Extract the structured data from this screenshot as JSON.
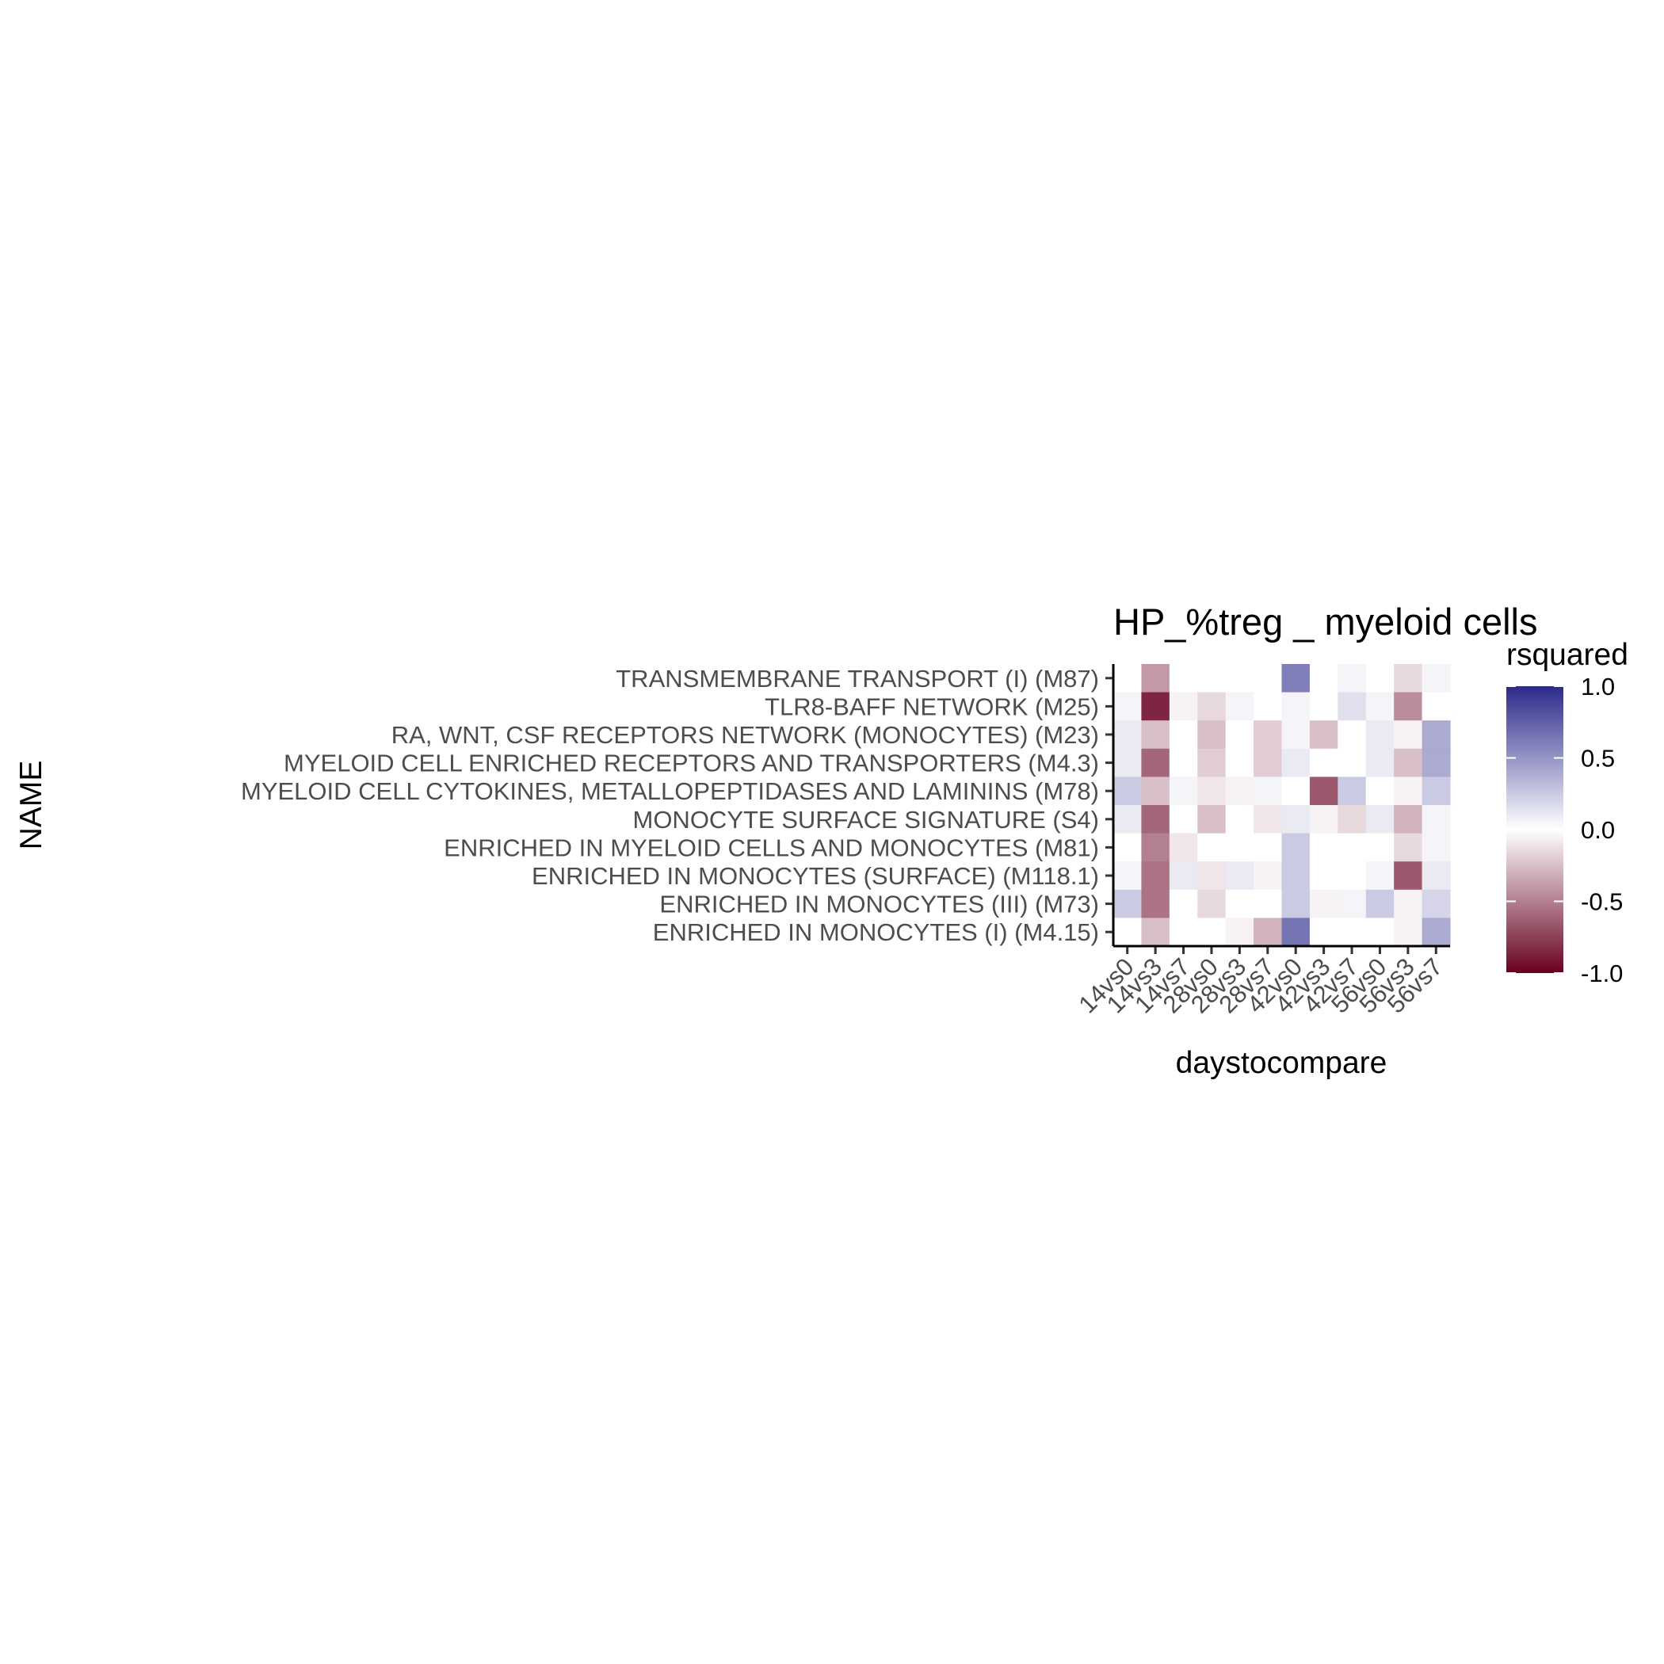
{
  "chart_data": {
    "type": "heatmap",
    "title": "HP_%treg _ myeloid cells",
    "xlabel": "daystocompare",
    "ylabel": "NAME",
    "x_categories": [
      "14vs0",
      "14vs3",
      "14vs7",
      "28vs0",
      "28vs3",
      "28vs7",
      "42vs0",
      "42vs3",
      "42vs7",
      "56vs0",
      "56vs3",
      "56vs7"
    ],
    "y_categories": [
      "TRANSMEMBRANE TRANSPORT (I) (M87)",
      "TLR8-BAFF NETWORK (M25)",
      "RA, WNT, CSF RECEPTORS NETWORK (MONOCYTES) (M23)",
      "MYELOID CELL ENRICHED RECEPTORS AND TRANSPORTERS (M4.3)",
      "MYELOID CELL CYTOKINES, METALLOPEPTIDASES AND LAMININS (M78)",
      "MONOCYTE SURFACE SIGNATURE (S4)",
      "ENRICHED IN MYELOID CELLS AND MONOCYTES (M81)",
      "ENRICHED IN MONOCYTES (SURFACE) (M118.1)",
      "ENRICHED IN MONOCYTES (III) (M73)",
      "ENRICHED IN MONOCYTES (I) (M4.15)"
    ],
    "values": [
      [
        0.0,
        -0.4,
        0.0,
        0.0,
        0.0,
        0.0,
        0.6,
        0.0,
        0.05,
        0.0,
        -0.15,
        0.05
      ],
      [
        0.05,
        -0.85,
        -0.05,
        -0.15,
        0.05,
        0.0,
        0.05,
        0.0,
        0.15,
        0.05,
        -0.45,
        0.0
      ],
      [
        0.1,
        -0.25,
        0.0,
        -0.25,
        0.0,
        -0.2,
        0.05,
        -0.25,
        0.0,
        0.1,
        -0.05,
        0.4
      ],
      [
        0.1,
        -0.6,
        0.0,
        -0.2,
        0.0,
        -0.2,
        0.1,
        0.0,
        0.0,
        0.1,
        -0.25,
        0.4
      ],
      [
        0.25,
        -0.25,
        0.05,
        -0.1,
        -0.05,
        0.05,
        0.0,
        -0.65,
        0.25,
        0.0,
        -0.05,
        0.25
      ],
      [
        0.1,
        -0.6,
        0.0,
        -0.25,
        0.0,
        -0.1,
        0.1,
        -0.05,
        -0.15,
        0.1,
        -0.3,
        0.05
      ],
      [
        0.0,
        -0.5,
        -0.1,
        0.0,
        0.0,
        0.0,
        0.25,
        0.0,
        0.0,
        0.0,
        -0.15,
        0.05
      ],
      [
        0.05,
        -0.55,
        0.1,
        -0.1,
        0.1,
        -0.05,
        0.25,
        0.0,
        0.0,
        0.05,
        -0.65,
        0.1
      ],
      [
        0.25,
        -0.55,
        0.0,
        -0.15,
        0.0,
        0.0,
        0.25,
        -0.05,
        0.05,
        0.25,
        -0.05,
        0.2
      ],
      [
        0.0,
        -0.25,
        0.0,
        0.0,
        -0.05,
        -0.3,
        0.65,
        0.0,
        0.0,
        0.0,
        -0.05,
        0.4
      ]
    ],
    "legend": {
      "title": "rsquared",
      "range": [
        -1.0,
        1.0
      ],
      "ticks": [
        "1.0",
        "0.5",
        "0.0",
        "-0.5",
        "-1.0"
      ],
      "tick_values": [
        1.0,
        0.5,
        0.0,
        -0.5,
        -1.0
      ],
      "colors": {
        "low": "#67001f",
        "mid": "#ffffff",
        "high": "#2c2a8a"
      },
      "placement": "right"
    },
    "grid": false
  }
}
